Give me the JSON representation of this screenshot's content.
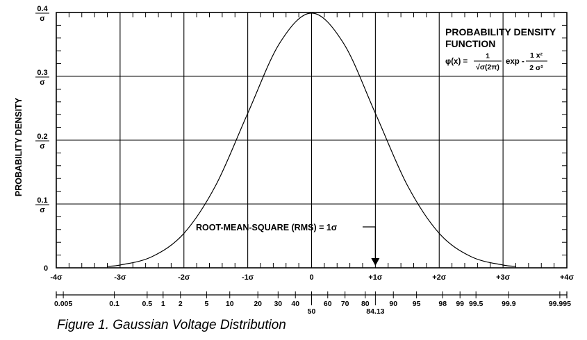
{
  "chart_data": {
    "type": "line",
    "title": "",
    "ylabel": "PROBABILITY DENSITY",
    "xlim": [
      -4,
      4
    ],
    "ylim": [
      0,
      0.4
    ],
    "grid": true,
    "series": [
      {
        "x": [
          -3.2,
          -3.0,
          -2.5,
          -2.0,
          -1.5,
          -1.0,
          -0.5,
          0.0,
          0.5,
          1.0,
          1.5,
          2.0,
          2.5,
          3.0,
          3.2
        ],
        "values": [
          0.0024,
          0.0044,
          0.0175,
          0.054,
          0.1295,
          0.242,
          0.352,
          0.399,
          0.352,
          0.242,
          0.1295,
          0.054,
          0.0175,
          0.0044,
          0.0024
        ]
      }
    ],
    "y_ticks": [
      {
        "value": 0,
        "num": "0",
        "den": ""
      },
      {
        "value": 0.1,
        "num": "0.1",
        "den": "σ"
      },
      {
        "value": 0.2,
        "num": "0.2",
        "den": "σ"
      },
      {
        "value": 0.3,
        "num": "0.3",
        "den": "σ"
      },
      {
        "value": 0.4,
        "num": "0.4",
        "den": "σ"
      }
    ],
    "x_ticks": [
      {
        "value": -4,
        "label": "-4σ"
      },
      {
        "value": -3,
        "label": "-3σ"
      },
      {
        "value": -2,
        "label": "-2σ"
      },
      {
        "value": -1,
        "label": "-1σ"
      },
      {
        "value": 0,
        "label": "0"
      },
      {
        "value": 1,
        "label": "+1σ"
      },
      {
        "value": 2,
        "label": "+2σ"
      },
      {
        "value": 3,
        "label": "+3σ"
      },
      {
        "value": 4,
        "label": "+4σ"
      }
    ],
    "percentile_ticks": [
      {
        "label": "0.005",
        "z": -3.89
      },
      {
        "label": "0.1",
        "z": -3.09
      },
      {
        "label": "0.5",
        "z": -2.576
      },
      {
        "label": "1",
        "z": -2.326
      },
      {
        "label": "2",
        "z": -2.054
      },
      {
        "label": "5",
        "z": -1.645
      },
      {
        "label": "10",
        "z": -1.2816
      },
      {
        "label": "20",
        "z": -0.8416
      },
      {
        "label": "30",
        "z": -0.5244
      },
      {
        "label": "40",
        "z": -0.2533
      },
      {
        "label": "50",
        "z": 0.0,
        "low": true
      },
      {
        "label": "60",
        "z": 0.2533
      },
      {
        "label": "70",
        "z": 0.5244
      },
      {
        "label": "80",
        "z": 0.8416
      },
      {
        "label": "84.13",
        "z": 1.0,
        "low": true
      },
      {
        "label": "90",
        "z": 1.2816
      },
      {
        "label": "95",
        "z": 1.645
      },
      {
        "label": "98",
        "z": 2.054
      },
      {
        "label": "99",
        "z": 2.326
      },
      {
        "label": "99.5",
        "z": 2.576
      },
      {
        "label": "99.9",
        "z": 3.09
      },
      {
        "label": "99.995",
        "z": 3.89
      }
    ],
    "annotations": {
      "pdf_title_line1": "PROBABILITY DENSITY",
      "pdf_title_line2": "FUNCTION",
      "formula_lhs": "φ(x) =",
      "formula_num1": "1",
      "formula_den1": "√σ(2π)",
      "formula_exp": "exp -",
      "formula_num2": "1 x²",
      "formula_den2": "2 σ²",
      "rms_label": "ROOT-MEAN-SQUARE (RMS) = 1σ",
      "rms_arrow_x": 1.0
    },
    "colors": {
      "line": "#000000",
      "grid": "#000000",
      "background": "#ffffff"
    }
  },
  "caption": "Figure 1. Gaussian Voltage Distribution"
}
